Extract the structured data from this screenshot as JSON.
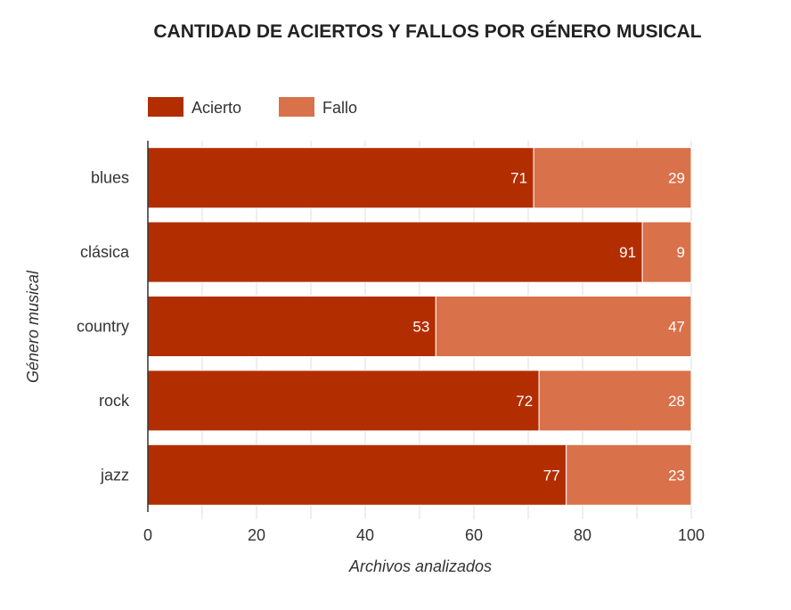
{
  "chart_data": {
    "type": "bar",
    "orientation": "horizontal",
    "stacked": true,
    "title": "CANTIDAD DE ACIERTOS Y FALLOS POR GÉNERO MUSICAL",
    "xlabel": "Archivos analizados",
    "ylabel": "Género musical",
    "xlim": [
      0,
      100
    ],
    "xticks": [
      0,
      20,
      40,
      60,
      80,
      100
    ],
    "grid": true,
    "legend_position": "top-left",
    "categories": [
      "blues",
      "clásica",
      "country",
      "rock",
      "jazz"
    ],
    "series": [
      {
        "name": "Acierto",
        "color": "#b22e00",
        "values": [
          71,
          91,
          53,
          72,
          77
        ]
      },
      {
        "name": "Fallo",
        "color": "#d9714a",
        "values": [
          29,
          9,
          47,
          28,
          23
        ]
      }
    ]
  }
}
